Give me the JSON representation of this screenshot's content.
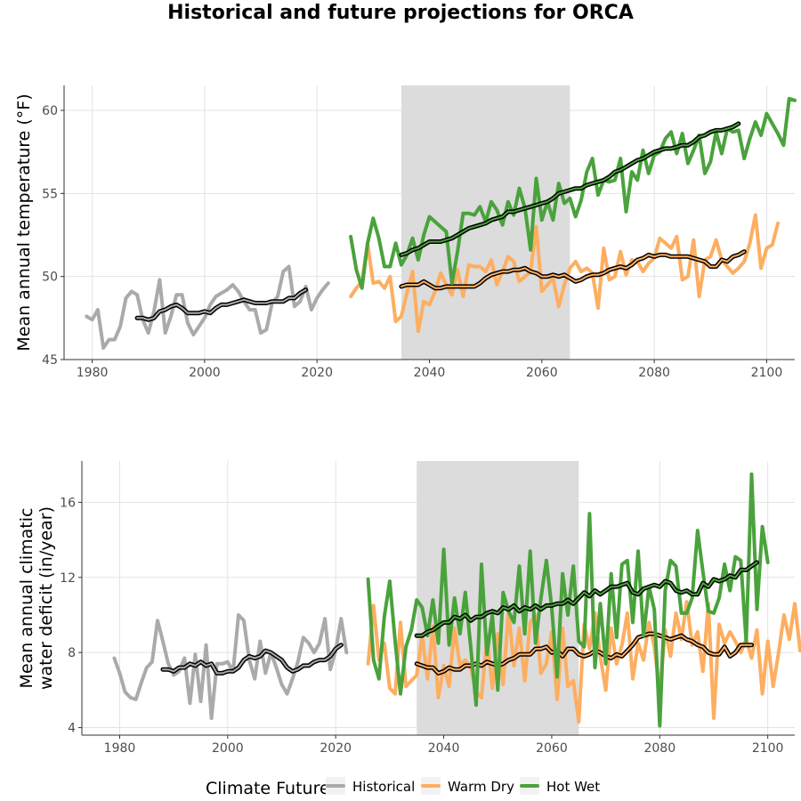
{
  "figure": {
    "title": "Historical and future projections for ORCA",
    "colors": {
      "Historical": "#aaaaaa",
      "Warm Dry": "#fdae61",
      "Hot Wet": "#4aa23c",
      "smooth": "#000000",
      "window": "#dcdcdc"
    }
  },
  "legend": {
    "title": "Climate Future",
    "placement": "bottom",
    "items": [
      "Historical",
      "Warm Dry",
      "Hot Wet"
    ]
  },
  "chart_data": [
    {
      "type": "line",
      "title": "",
      "xlabel": "",
      "ylabel": "Mean annual temperature (°F)",
      "xlim": [
        1975,
        2105
      ],
      "ylim": [
        45,
        61.5
      ],
      "xticks": [
        1980,
        2000,
        2020,
        2040,
        2060,
        2080,
        2100
      ],
      "yticks": [
        45,
        50,
        55,
        60
      ],
      "shaded_period": [
        2035,
        2065
      ],
      "grid": true,
      "series": [
        {
          "name": "Historical",
          "x_start": 1979,
          "values": [
            47.6,
            47.4,
            48.0,
            45.7,
            46.2,
            46.2,
            47.0,
            48.7,
            49.1,
            48.9,
            47.4,
            46.6,
            47.9,
            49.8,
            46.6,
            47.6,
            48.9,
            48.9,
            47.2,
            46.5,
            47.0,
            47.5,
            48.3,
            48.8,
            49.0,
            49.2,
            49.5,
            49.1,
            48.5,
            48.0,
            48.0,
            46.6,
            46.8,
            48.4,
            48.8,
            50.3,
            50.6,
            48.2,
            48.5,
            49.4,
            48.0,
            48.7,
            49.2,
            49.6
          ]
        },
        {
          "name": "Historical 10-yr average",
          "x_start": 1988,
          "values": [
            47.5,
            47.5,
            47.4,
            47.5,
            47.9,
            48.0,
            48.2,
            48.3,
            48.1,
            47.8,
            47.8,
            47.8,
            47.9,
            47.8,
            48.1,
            48.3,
            48.3,
            48.4,
            48.5,
            48.6,
            48.5,
            48.4,
            48.4,
            48.4,
            48.5,
            48.5,
            48.5,
            48.7,
            48.7,
            49.0,
            49.2
          ]
        },
        {
          "name": "Warm Dry",
          "x_start": 2026,
          "values": [
            48.8,
            49.3,
            49.7,
            52.0,
            49.6,
            49.7,
            49.3,
            50.0,
            47.3,
            47.6,
            49.0,
            50.3,
            46.7,
            48.5,
            48.3,
            49.1,
            50.2,
            49.5,
            48.9,
            50.4,
            48.8,
            50.7,
            50.6,
            50.6,
            50.3,
            51.0,
            49.5,
            50.3,
            51.2,
            50.9,
            49.7,
            50.0,
            50.3,
            53.0,
            49.1,
            49.5,
            49.9,
            48.2,
            49.5,
            50.5,
            50.9,
            50.3,
            50.5,
            50.2,
            48.1,
            51.7,
            49.8,
            50.0,
            51.5,
            50.1,
            51.0,
            50.9,
            50.3,
            50.8,
            51.1,
            52.3,
            52.0,
            51.7,
            52.4,
            49.8,
            50.0,
            52.2,
            48.8,
            51.0,
            51.2,
            52.2,
            51.0,
            50.6,
            50.2,
            50.5,
            50.9,
            52.0,
            53.7,
            50.5,
            51.7,
            51.9,
            53.2
          ]
        },
        {
          "name": "Warm Dry 10-yr average",
          "x_start": 2035,
          "values": [
            49.4,
            49.5,
            49.5,
            49.5,
            49.7,
            49.5,
            49.3,
            49.3,
            49.4,
            49.4,
            49.4,
            49.4,
            49.4,
            49.4,
            49.6,
            49.9,
            50.1,
            50.2,
            50.3,
            50.3,
            50.4,
            50.4,
            50.5,
            50.3,
            50.2,
            50.0,
            50.0,
            50.1,
            50.0,
            50.1,
            49.9,
            49.7,
            49.8,
            50.0,
            50.1,
            50.1,
            50.2,
            50.4,
            50.5,
            50.6,
            50.5,
            50.7,
            51.0,
            51.1,
            51.3,
            51.2,
            51.3,
            51.3,
            51.2,
            51.2,
            51.2,
            51.2,
            51.1,
            51.0,
            50.9,
            50.6,
            50.6,
            51.0,
            50.9,
            51.2,
            51.3,
            51.5
          ]
        },
        {
          "name": "Hot Wet",
          "x_start": 2026,
          "values": [
            52.4,
            50.4,
            49.3,
            52.0,
            53.5,
            52.3,
            50.6,
            50.6,
            52.0,
            50.7,
            51.3,
            52.3,
            51.0,
            52.5,
            53.6,
            53.3,
            53.0,
            52.7,
            49.6,
            51.5,
            53.8,
            53.8,
            53.7,
            54.2,
            53.3,
            54.5,
            54.0,
            53.1,
            54.5,
            53.7,
            55.3,
            54.1,
            51.6,
            55.9,
            53.4,
            54.5,
            53.4,
            55.6,
            54.4,
            54.7,
            53.6,
            54.6,
            56.3,
            57.1,
            54.9,
            55.8,
            55.7,
            55.8,
            57.1,
            53.9,
            56.3,
            55.8,
            57.6,
            56.2,
            57.3,
            57.5,
            58.3,
            58.7,
            57.4,
            58.6,
            56.8,
            57.6,
            58.5,
            56.2,
            56.9,
            58.7,
            57.4,
            58.9,
            58.7,
            58.8,
            57.1,
            58.3,
            59.3,
            58.5,
            59.8,
            59.2,
            58.6,
            57.9,
            60.7,
            60.6
          ]
        },
        {
          "name": "Hot Wet 10-yr average",
          "x_start": 2035,
          "values": [
            51.3,
            51.4,
            51.6,
            51.7,
            51.9,
            52.1,
            52.1,
            52.1,
            52.2,
            52.3,
            52.5,
            52.7,
            52.9,
            53.0,
            53.1,
            53.2,
            53.4,
            53.5,
            53.6,
            53.9,
            53.9,
            54.0,
            54.1,
            54.2,
            54.3,
            54.4,
            54.5,
            54.7,
            55.0,
            55.1,
            55.2,
            55.3,
            55.3,
            55.5,
            55.6,
            55.7,
            55.8,
            56.0,
            56.3,
            56.4,
            56.6,
            56.8,
            57.0,
            57.1,
            57.3,
            57.5,
            57.6,
            57.7,
            57.7,
            57.8,
            57.9,
            57.9,
            58.1,
            58.4,
            58.5,
            58.7,
            58.8,
            58.8,
            58.9,
            59.0,
            59.2
          ]
        }
      ]
    },
    {
      "type": "line",
      "title": "",
      "xlabel": "",
      "ylabel": "Mean annual climatic water deficit (in/year)",
      "ylabel_lines": [
        "Mean annual climatic",
        "water deficit (in/year)"
      ],
      "xlim": [
        1973,
        2105
      ],
      "ylim": [
        3.6,
        18.2
      ],
      "xticks": [
        1980,
        2000,
        2020,
        2040,
        2060,
        2080,
        2100
      ],
      "yticks": [
        4,
        8,
        12,
        16
      ],
      "shaded_period": [
        2035,
        2065
      ],
      "grid": true,
      "series": [
        {
          "name": "Historical",
          "x_start": 1979,
          "values": [
            7.7,
            6.9,
            5.9,
            5.6,
            5.5,
            6.4,
            7.2,
            7.5,
            9.7,
            8.6,
            7.4,
            6.8,
            7.0,
            7.7,
            5.3,
            7.9,
            5.4,
            8.4,
            4.5,
            7.4,
            7.4,
            7.5,
            7.0,
            10.0,
            9.7,
            7.6,
            6.6,
            8.6,
            6.9,
            8.0,
            7.2,
            6.3,
            5.8,
            6.6,
            7.5,
            8.8,
            8.5,
            8.0,
            8.5,
            9.8,
            7.1,
            8.1,
            9.8,
            8.0
          ]
        },
        {
          "name": "Historical 10-yr average",
          "x_start": 1988,
          "values": [
            7.1,
            7.1,
            7.0,
            7.2,
            7.2,
            7.4,
            7.3,
            7.5,
            7.3,
            7.4,
            6.9,
            6.9,
            7.0,
            7.0,
            7.2,
            7.6,
            7.8,
            7.7,
            7.8,
            8.1,
            8.0,
            7.8,
            7.6,
            7.2,
            7.0,
            7.1,
            7.3,
            7.3,
            7.5,
            7.6,
            7.6,
            7.8,
            8.2,
            8.4
          ]
        },
        {
          "name": "Warm Dry",
          "x_start": 2026,
          "values": [
            7.4,
            10.5,
            7.6,
            8.5,
            6.1,
            5.8,
            9.6,
            6.2,
            6.5,
            6.8,
            8.9,
            6.6,
            9.4,
            5.6,
            7.3,
            6.2,
            9.3,
            7.3,
            7.6,
            7.2,
            5.9,
            5.6,
            8.8,
            6.1,
            9.0,
            6.3,
            10.2,
            7.3,
            9.3,
            6.5,
            9.6,
            10.0,
            6.9,
            7.4,
            9.1,
            5.5,
            9.3,
            6.2,
            6.5,
            4.3,
            9.5,
            8.2,
            10.1,
            7.8,
            6.0,
            9.3,
            7.4,
            8.4,
            10.1,
            6.6,
            8.5,
            7.6,
            9.6,
            8.3,
            5.9,
            9.2,
            7.8,
            10.1,
            8.7,
            10.7,
            8.4,
            9.1,
            7.0,
            10.6,
            4.5,
            9.5,
            8.5,
            9.1,
            8.6,
            8.0,
            8.7,
            7.7,
            9.2,
            5.8,
            8.6,
            6.2,
            8.0,
            10.0,
            8.7,
            10.6,
            8.1
          ]
        },
        {
          "name": "Warm Dry 10-yr average",
          "x_start": 2035,
          "values": [
            7.4,
            7.3,
            7.2,
            7.2,
            6.9,
            7.0,
            7.2,
            7.1,
            7.1,
            7.3,
            7.3,
            7.4,
            7.3,
            7.5,
            7.4,
            7.3,
            7.4,
            7.6,
            7.7,
            7.9,
            7.9,
            7.9,
            8.2,
            8.2,
            8.3,
            8.0,
            8.1,
            7.8,
            8.2,
            8.2,
            7.9,
            7.8,
            7.9,
            8.1,
            8.0,
            7.8,
            7.7,
            7.9,
            7.8,
            8.1,
            8.4,
            8.8,
            8.9,
            9.0,
            9.0,
            8.9,
            8.8,
            8.7,
            8.8,
            8.9,
            8.7,
            8.6,
            8.4,
            8.3,
            8.0,
            7.9,
            7.9,
            8.3,
            7.8,
            8.0,
            8.4,
            8.4,
            8.4
          ]
        },
        {
          "name": "Hot Wet",
          "x_start": 2026,
          "values": [
            11.9,
            7.6,
            6.6,
            9.9,
            11.8,
            8.6,
            5.8,
            8.3,
            9.2,
            10.8,
            10.4,
            8.9,
            10.8,
            8.5,
            13.5,
            8.4,
            10.9,
            9.0,
            11.2,
            8.3,
            5.2,
            12.7,
            7.9,
            10.0,
            6.0,
            11.2,
            10.2,
            9.6,
            12.6,
            9.0,
            13.4,
            8.5,
            10.9,
            12.9,
            10.4,
            6.7,
            12.2,
            10.0,
            12.6,
            8.6,
            8.3,
            15.4,
            7.2,
            10.6,
            7.4,
            12.2,
            8.8,
            12.7,
            12.9,
            9.6,
            13.4,
            8.9,
            11.5,
            10.3,
            4.1,
            11.3,
            12.9,
            12.6,
            10.1,
            10.1,
            10.9,
            14.5,
            12.3,
            10.2,
            10.1,
            10.9,
            12.7,
            11.3,
            13.1,
            12.9,
            8.6,
            17.5,
            10.3,
            14.7,
            12.8
          ]
        },
        {
          "name": "Hot Wet 10-yr average",
          "x_start": 2035,
          "values": [
            8.9,
            8.9,
            9.1,
            9.2,
            9.4,
            9.6,
            9.6,
            9.9,
            9.8,
            10.0,
            9.7,
            9.9,
            9.9,
            10.1,
            10.2,
            10.1,
            10.4,
            10.3,
            10.5,
            10.2,
            10.4,
            10.3,
            10.5,
            10.3,
            10.5,
            10.5,
            10.6,
            10.6,
            10.8,
            10.6,
            10.9,
            11.2,
            11.0,
            11.3,
            11.1,
            11.3,
            11.5,
            11.5,
            11.6,
            11.7,
            11.2,
            11.1,
            11.4,
            11.5,
            11.6,
            11.5,
            11.8,
            11.7,
            11.3,
            11.2,
            11.3,
            11.1,
            11.1,
            11.7,
            11.5,
            11.9,
            11.8,
            11.9,
            12.1,
            12.0,
            12.4,
            12.4,
            12.6,
            12.8
          ]
        }
      ]
    }
  ]
}
